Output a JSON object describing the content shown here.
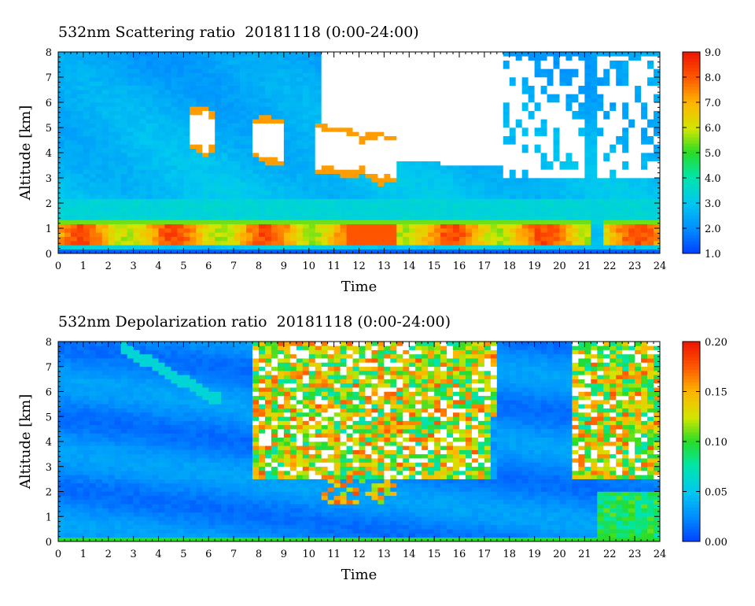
{
  "chart_data": [
    {
      "type": "heatmap",
      "title": "532nm Scattering ratio  20181118 (0:00-24:00)",
      "xlabel": "Time",
      "ylabel": "Altitude [km]",
      "xlim": [
        0,
        24
      ],
      "ylim": [
        0,
        8
      ],
      "x_ticks": [
        "0",
        "1",
        "2",
        "3",
        "4",
        "5",
        "6",
        "7",
        "8",
        "9",
        "10",
        "11",
        "12",
        "13",
        "14",
        "15",
        "16",
        "17",
        "18",
        "19",
        "20",
        "21",
        "22",
        "23",
        "24"
      ],
      "y_ticks": [
        "0",
        "1",
        "2",
        "3",
        "4",
        "5",
        "6",
        "7",
        "8"
      ],
      "colorbar": {
        "range": [
          1.0,
          9.0
        ],
        "ticks": [
          "1.0",
          "2.0",
          "3.0",
          "4.0",
          "5.0",
          "6.0",
          "7.0",
          "8.0",
          "9.0"
        ]
      },
      "features": {
        "boundary_layer_top_km": 1.1,
        "high_values_layer_km": [
          0.3,
          1.3
        ],
        "cloud_events_hours": [
          [
            5.2,
            6.2
          ],
          [
            7.8,
            9.0
          ],
          [
            10.2,
            13.5
          ],
          [
            17.8,
            21.0
          ],
          [
            21.5,
            24.0
          ]
        ]
      }
    },
    {
      "type": "heatmap",
      "title": "532nm Depolarization ratio  20181118 (0:00-24:00)",
      "xlabel": "Time",
      "ylabel": "Altitude [km]",
      "xlim": [
        0,
        24
      ],
      "ylim": [
        0,
        8
      ],
      "x_ticks": [
        "0",
        "1",
        "2",
        "3",
        "4",
        "5",
        "6",
        "7",
        "8",
        "9",
        "10",
        "11",
        "12",
        "13",
        "14",
        "15",
        "16",
        "17",
        "18",
        "19",
        "20",
        "21",
        "22",
        "23",
        "24"
      ],
      "y_ticks": [
        "0",
        "1",
        "2",
        "3",
        "4",
        "5",
        "6",
        "7",
        "8"
      ],
      "colorbar": {
        "range": [
          0.0,
          0.2
        ],
        "ticks": [
          "0.00",
          "0.05",
          "0.10",
          "0.15",
          "0.20"
        ]
      },
      "features": {
        "background_level": 0.02,
        "noisy_high_region_hours": [
          [
            7.8,
            17.5
          ],
          [
            20.5,
            24.0
          ]
        ],
        "noisy_high_region_km": [
          2.5,
          8.0
        ]
      }
    }
  ]
}
